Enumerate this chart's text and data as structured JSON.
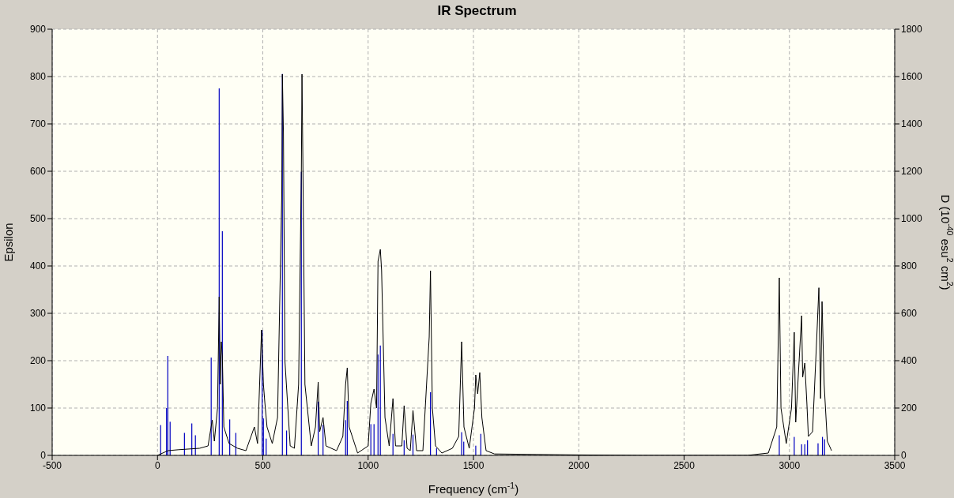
{
  "chart_data": {
    "type": "line",
    "title": "IR Spectrum",
    "xlabel": "Frequency (cm$^{-1}$)",
    "ylabel": "Epsilon",
    "y2label": "D (10$^{-40}$ esu$^{2}$ cm$^{2}$)",
    "xlim": [
      -500,
      3500
    ],
    "xticks": [
      -500,
      0,
      500,
      1000,
      1500,
      2000,
      2500,
      3000,
      3500
    ],
    "ylim": [
      0,
      900
    ],
    "yticks": [
      0,
      100,
      200,
      300,
      400,
      500,
      600,
      700,
      800,
      900
    ],
    "y2lim": [
      0,
      1800
    ],
    "y2ticks": [
      0,
      200,
      400,
      600,
      800,
      1000,
      1200,
      1400,
      1600,
      1800
    ],
    "grid": true,
    "series": [
      {
        "color": "#000000",
        "x": [
          0,
          50,
          100,
          200,
          240,
          260,
          270,
          285,
          293,
          298,
          303,
          308,
          315,
          340,
          380,
          420,
          460,
          475,
          488,
          494,
          503,
          510,
          520,
          545,
          570,
          590,
          593,
          598,
          605,
          630,
          650,
          670,
          683,
          686,
          690,
          700,
          730,
          750,
          763,
          770,
          786,
          800,
          850,
          880,
          893,
          901,
          910,
          950,
          1000,
          1013,
          1028,
          1040,
          1047,
          1058,
          1064,
          1080,
          1100,
          1118,
          1130,
          1160,
          1171,
          1185,
          1200,
          1213,
          1230,
          1260,
          1290,
          1296,
          1305,
          1320,
          1350,
          1400,
          1430,
          1444,
          1455,
          1480,
          1505,
          1511,
          1520,
          1530,
          1540,
          1560,
          1600,
          1800,
          2000,
          2300,
          2800,
          2900,
          2940,
          2952,
          2960,
          2985,
          3010,
          3023,
          3030,
          3058,
          3063,
          3073,
          3083,
          3090,
          3110,
          3130,
          3140,
          3148,
          3155,
          3165,
          3180,
          3200
        ],
        "values": [
          0,
          10,
          12,
          15,
          20,
          75,
          30,
          100,
          335,
          150,
          240,
          210,
          60,
          25,
          15,
          10,
          60,
          25,
          190,
          265,
          150,
          110,
          60,
          25,
          80,
          550,
          805,
          680,
          200,
          20,
          15,
          150,
          600,
          805,
          630,
          150,
          20,
          60,
          155,
          50,
          80,
          20,
          10,
          40,
          150,
          185,
          60,
          5,
          20,
          110,
          140,
          100,
          410,
          435,
          390,
          80,
          20,
          120,
          20,
          20,
          105,
          15,
          10,
          95,
          10,
          10,
          250,
          390,
          100,
          20,
          5,
          15,
          40,
          240,
          60,
          15,
          100,
          170,
          130,
          175,
          80,
          10,
          3,
          2,
          1,
          0,
          0,
          5,
          60,
          375,
          100,
          25,
          100,
          260,
          70,
          295,
          165,
          195,
          110,
          40,
          50,
          250,
          354,
          120,
          325,
          150,
          30,
          10
        ]
      },
      {
        "type": "bar",
        "axis": "y2",
        "color": "#0000c0",
        "x": [
          15,
          43,
          49,
          60,
          128,
          163,
          180,
          255,
          293,
          308,
          343,
          372,
          497,
          503,
          516,
          593,
          613,
          683,
          763,
          786,
          893,
          901,
          1013,
          1028,
          1047,
          1058,
          1118,
          1171,
          1213,
          1296,
          1325,
          1444,
          1454,
          1511,
          1535,
          2952,
          3023,
          3058,
          3073,
          3086,
          3136,
          3157,
          3167
        ],
        "values": [
          128,
          200,
          420,
          142,
          95,
          135,
          85,
          413,
          1550,
          947,
          152,
          95,
          528,
          156,
          71,
          1611,
          105,
          1198,
          227,
          129,
          149,
          230,
          132,
          132,
          426,
          464,
          91,
          64,
          88,
          267,
          30,
          98,
          58,
          41,
          91,
          85,
          78,
          47,
          47,
          64,
          51,
          78,
          68
        ]
      }
    ]
  }
}
